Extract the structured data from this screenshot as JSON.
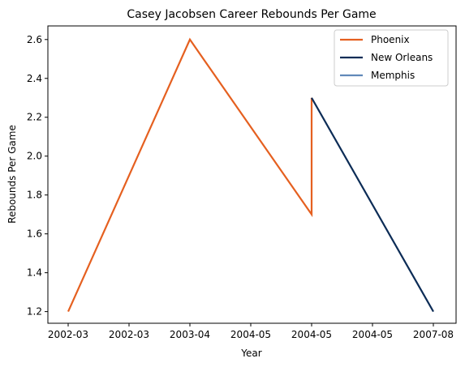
{
  "chart_data": {
    "type": "line",
    "title": "Casey Jacobsen Career Rebounds Per Game",
    "xlabel": "Year",
    "ylabel": "Rebounds Per Game",
    "x_ticks": [
      "2002-03",
      "2002-03",
      "2003-04",
      "2004-05",
      "2004-05",
      "2004-05",
      "2007-08"
    ],
    "ylim": [
      1.14,
      2.67
    ],
    "y_ticks": [
      "1.2",
      "1.4",
      "1.6",
      "1.8",
      "2.0",
      "2.2",
      "2.4",
      "2.6"
    ],
    "grid": false,
    "legend_position": "top-right",
    "series": [
      {
        "name": "Phoenix",
        "color": "#E56020",
        "points": [
          {
            "x": "2002-03",
            "y": 1.2
          },
          {
            "x": "2003-04",
            "y": 2.6
          },
          {
            "x": "2004-05",
            "y": 1.7
          },
          {
            "x": "2004-05",
            "y": 2.3
          }
        ]
      },
      {
        "name": "New Orleans",
        "color": "#0C2C56",
        "points": [
          {
            "x": "2004-05",
            "y": 2.3
          },
          {
            "x": "2007-08",
            "y": 1.2
          }
        ]
      },
      {
        "name": "Memphis",
        "color": "#6189B9",
        "points": []
      }
    ]
  }
}
